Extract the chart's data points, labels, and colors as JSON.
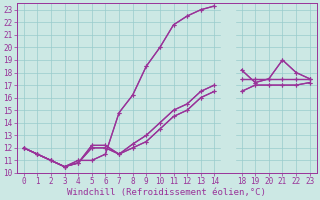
{
  "xlabel": "Windchill (Refroidissement éolien,°C)",
  "background_color": "#cce8e4",
  "line_color": "#993399",
  "grid_color": "#99cccc",
  "line1_x": [
    0,
    1,
    2,
    3,
    4,
    5,
    6,
    7,
    8,
    9,
    10,
    11,
    12,
    13,
    14
  ],
  "line1_y": [
    12.0,
    11.5,
    11.0,
    10.5,
    11.0,
    11.0,
    11.5,
    14.8,
    16.2,
    18.5,
    20.0,
    21.8,
    22.5,
    23.0,
    23.3
  ],
  "line1b_x": [
    18,
    19,
    20,
    21,
    22,
    23
  ],
  "line1b_y": [
    18.2,
    17.2,
    17.5,
    19.0,
    18.0,
    17.5
  ],
  "line2_x": [
    0,
    1,
    2,
    3,
    4,
    5,
    6,
    7,
    8,
    9,
    10,
    11,
    12,
    13,
    14
  ],
  "line2_y": [
    12.0,
    11.5,
    11.0,
    10.5,
    10.8,
    12.2,
    12.2,
    11.5,
    12.3,
    13.0,
    14.0,
    15.0,
    15.5,
    16.5,
    17.0
  ],
  "line2b_x": [
    18,
    19,
    20,
    21,
    22,
    23
  ],
  "line2b_y": [
    17.5,
    17.5,
    17.5,
    17.5,
    17.5,
    17.5
  ],
  "line3_x": [
    0,
    1,
    2,
    3,
    4,
    5,
    6,
    7,
    8,
    9,
    10,
    11,
    12,
    13,
    14
  ],
  "line3_y": [
    12.0,
    11.5,
    11.0,
    10.5,
    10.8,
    12.0,
    12.0,
    11.5,
    12.0,
    12.5,
    13.5,
    14.5,
    15.0,
    16.0,
    16.5
  ],
  "line3b_x": [
    18,
    19,
    20,
    21,
    22,
    23
  ],
  "line3b_y": [
    16.5,
    17.0,
    17.0,
    17.0,
    17.0,
    17.2
  ],
  "yticks": [
    10,
    11,
    12,
    13,
    14,
    15,
    16,
    17,
    18,
    19,
    20,
    21,
    22,
    23
  ],
  "xtick_left_labels": [
    "0",
    "1",
    "2",
    "3",
    "4",
    "5",
    "6",
    "7",
    "8",
    "9",
    "10",
    "11",
    "12",
    "13",
    "14"
  ],
  "xtick_right_labels": [
    "18",
    "19",
    "20",
    "21",
    "22",
    "23"
  ],
  "ylim": [
    10,
    23.5
  ],
  "fontsize_ticks": 5.5,
  "fontsize_xlabel": 6.5
}
